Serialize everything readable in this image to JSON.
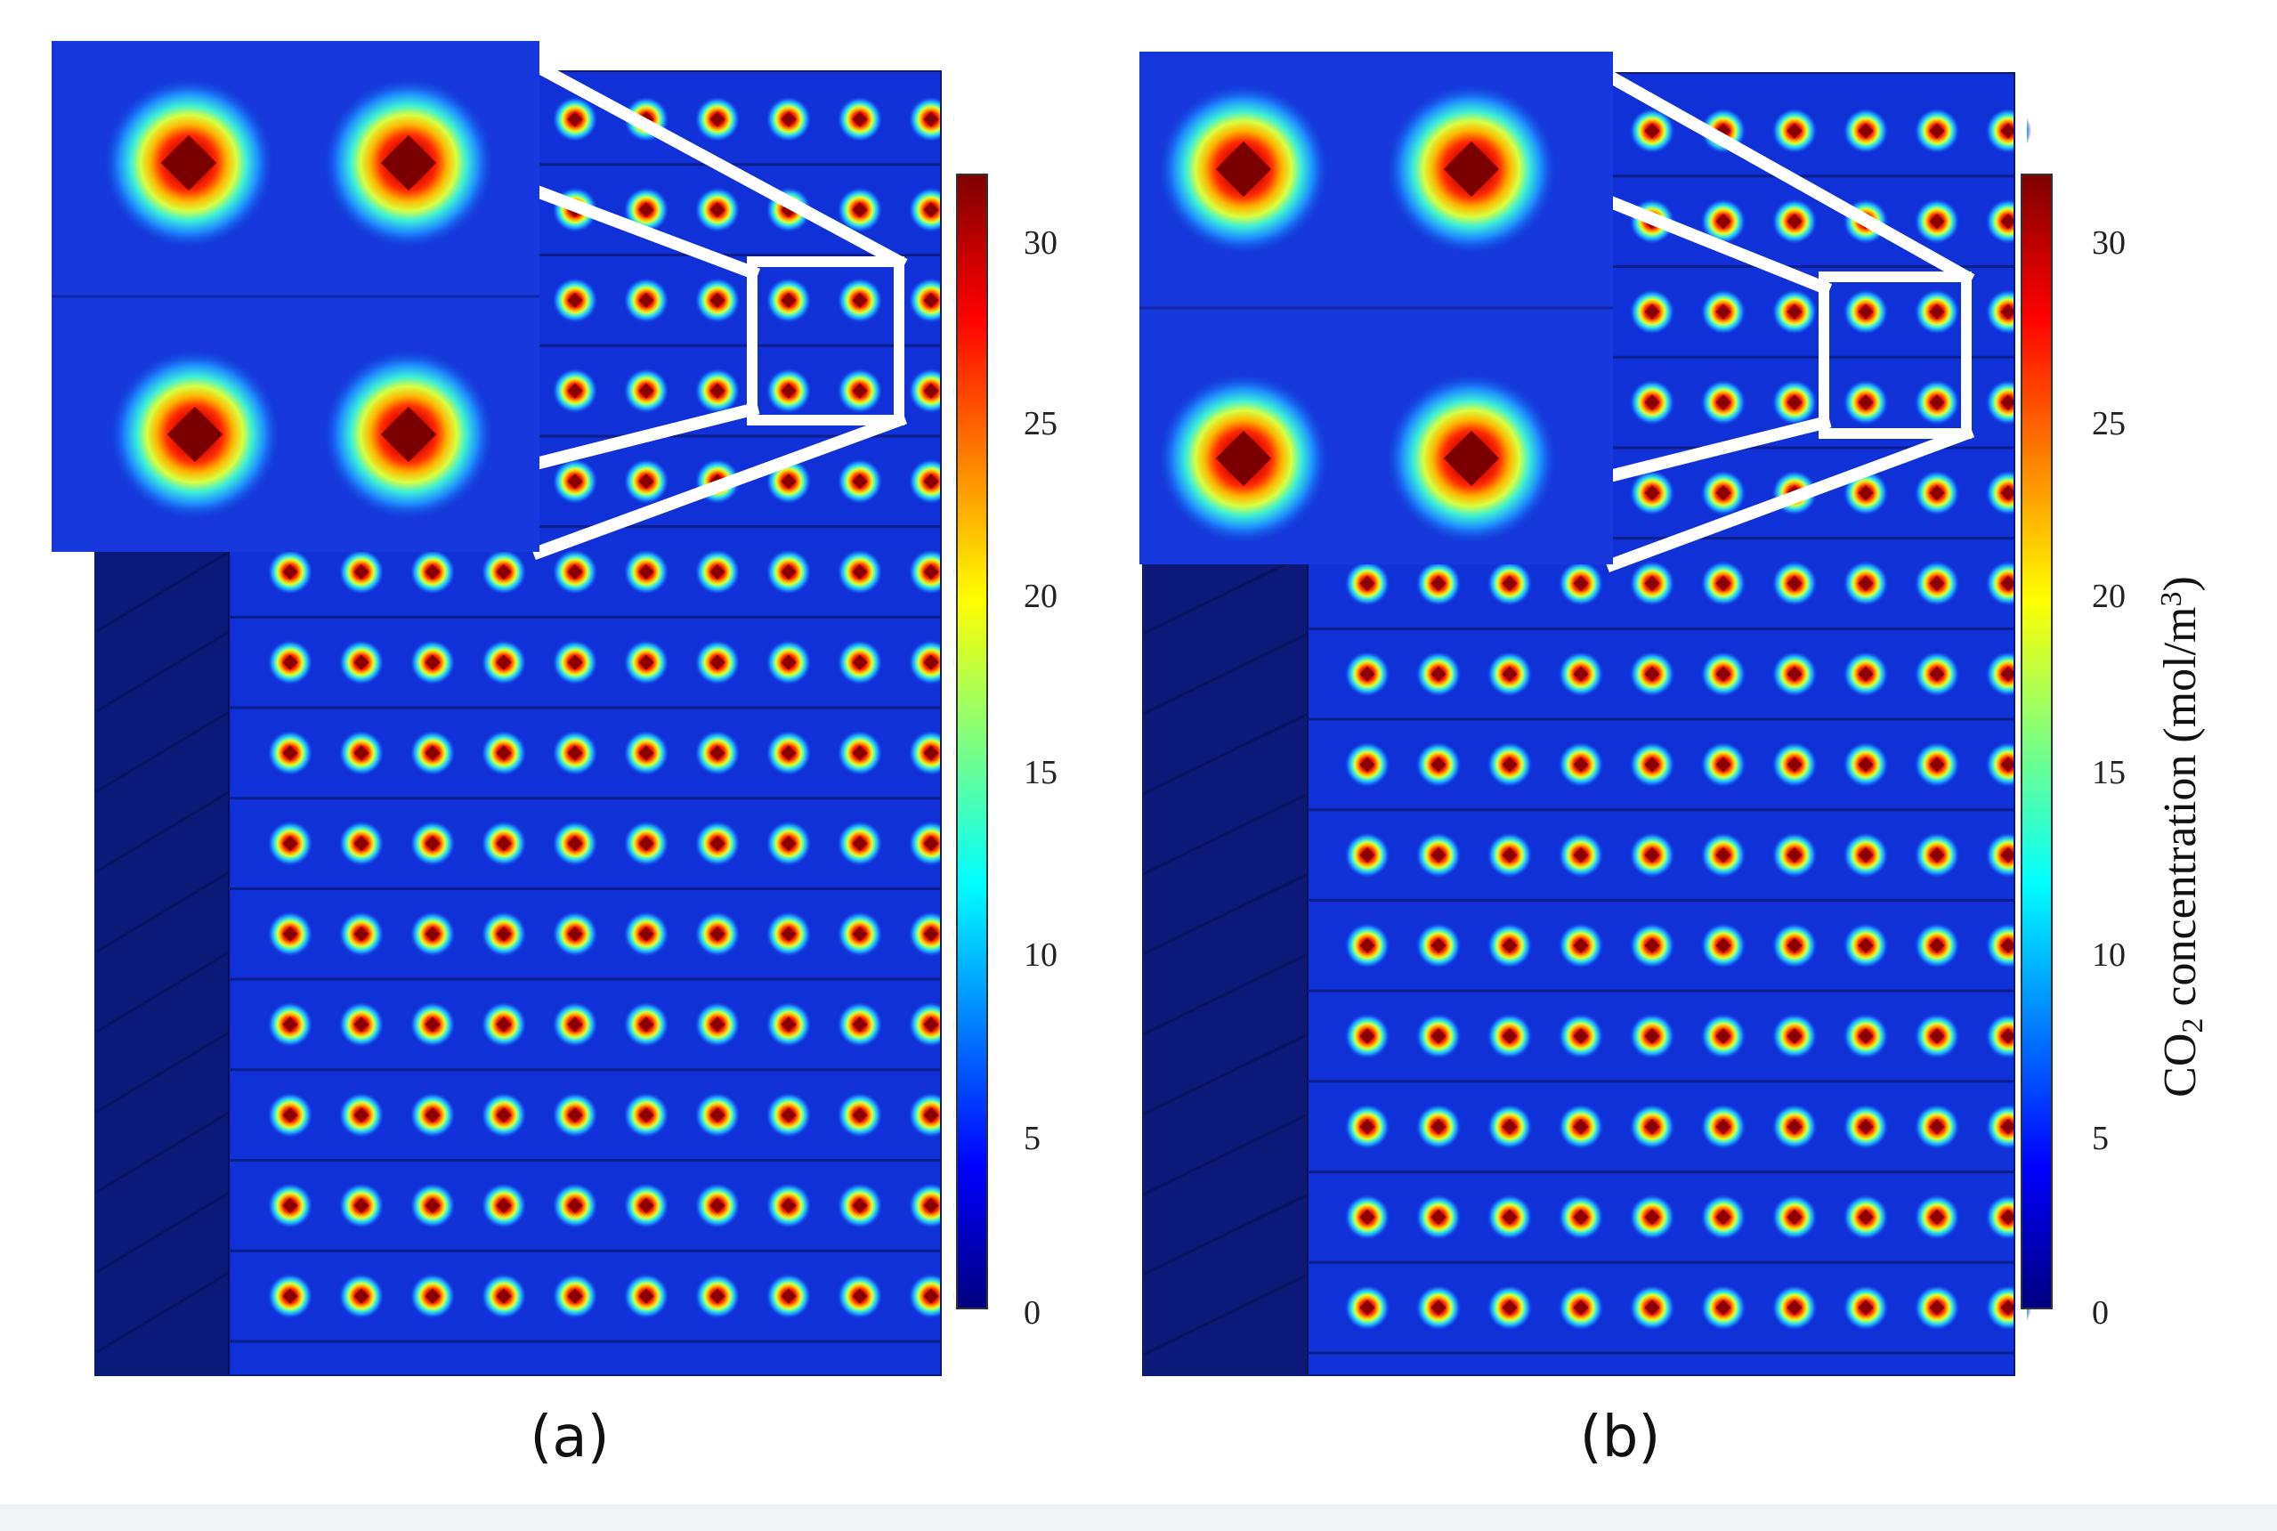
{
  "colormap": {
    "name": "jet",
    "stops": [
      "#00007f",
      "#0000ff",
      "#007fff",
      "#00ffff",
      "#7fff7f",
      "#ffff00",
      "#ff7f00",
      "#ff0000",
      "#7f0000"
    ],
    "background_level": "#1030d8",
    "blocked_region": "#0b1a78"
  },
  "colorbar": {
    "min": 0,
    "max": 32,
    "tick_labels": [
      "0",
      "5",
      "10",
      "15",
      "20",
      "25",
      "30"
    ],
    "title_parts": {
      "pre": "CO",
      "sub": "2",
      "mid": " concentration  (mol/m",
      "sup": "3",
      "post": ")"
    }
  },
  "panels": [
    {
      "id": "a",
      "caption": "(a)"
    },
    {
      "id": "b",
      "caption": "(b)"
    }
  ]
}
